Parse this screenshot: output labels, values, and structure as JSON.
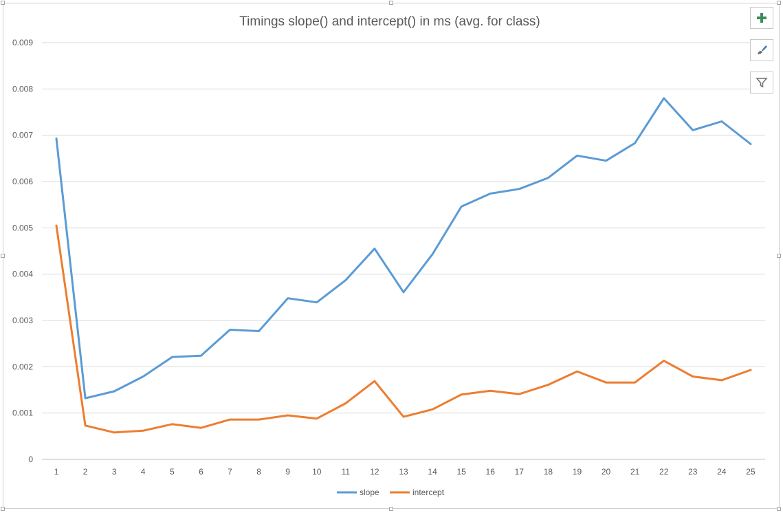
{
  "chart_data": {
    "type": "line",
    "title": "Timings slope() and intercept() in ms (avg. for class)",
    "xlabel": "",
    "ylabel": "",
    "x": [
      1,
      2,
      3,
      4,
      5,
      6,
      7,
      8,
      9,
      10,
      11,
      12,
      13,
      14,
      15,
      16,
      17,
      18,
      19,
      20,
      21,
      22,
      23,
      24,
      25
    ],
    "ylim": [
      0,
      0.009
    ],
    "yticks": [
      "0",
      "0.001",
      "0.002",
      "0.003",
      "0.004",
      "0.005",
      "0.006",
      "0.007",
      "0.008",
      "0.009"
    ],
    "grid": true,
    "legend_position": "bottom",
    "series": [
      {
        "name": "slope",
        "color": "#5B9BD5",
        "values": [
          0.00693,
          0.00132,
          0.00147,
          0.00179,
          0.00221,
          0.00224,
          0.0028,
          0.00277,
          0.00348,
          0.00339,
          0.00387,
          0.00455,
          0.00361,
          0.00443,
          0.00546,
          0.00574,
          0.00584,
          0.00608,
          0.00656,
          0.00645,
          0.00683,
          0.0078,
          0.00711,
          0.0073,
          0.00681
        ]
      },
      {
        "name": "intercept",
        "color": "#ED7D31",
        "values": [
          0.00505,
          0.00073,
          0.00058,
          0.00062,
          0.00076,
          0.00068,
          0.00086,
          0.00086,
          0.00095,
          0.00088,
          0.00121,
          0.00169,
          0.00092,
          0.00108,
          0.0014,
          0.00148,
          0.00141,
          0.00161,
          0.0019,
          0.00166,
          0.00166,
          0.00213,
          0.00179,
          0.00171,
          0.00193
        ]
      }
    ]
  },
  "toolbar": {
    "add_icon": "plus-icon",
    "style_icon": "paintbrush-icon",
    "filter_icon": "funnel-icon"
  }
}
